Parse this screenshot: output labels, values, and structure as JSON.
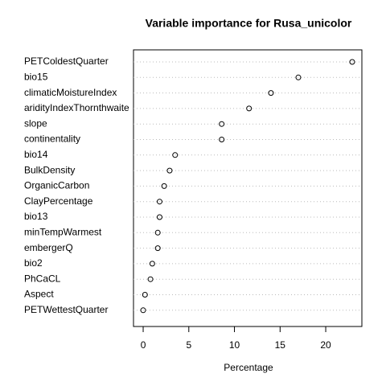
{
  "chart_data": {
    "type": "dot",
    "title": "Variable importance for Rusa_unicolor",
    "x_label": "Percentage",
    "categories": [
      "PETColdestQuarter",
      "bio15",
      "climaticMoistureIndex",
      "aridityIndexThornthwaite",
      "slope",
      "continentality",
      "bio14",
      "BulkDensity",
      "OrganicCarbon",
      "ClayPercentage",
      "bio13",
      "minTempWarmest",
      "embergerQ",
      "bio2",
      "PhCaCL",
      "Aspect",
      "PETWettestQuarter"
    ],
    "values": [
      22.9,
      17.0,
      14.0,
      11.6,
      8.6,
      8.6,
      3.5,
      2.9,
      2.3,
      1.8,
      1.8,
      1.6,
      1.6,
      1.0,
      0.8,
      0.2,
      0.0
    ],
    "xlim": [
      -1.06,
      23.96
    ],
    "xticks": [
      0,
      5,
      10,
      15,
      20
    ],
    "grid": true,
    "color": "#000000"
  }
}
